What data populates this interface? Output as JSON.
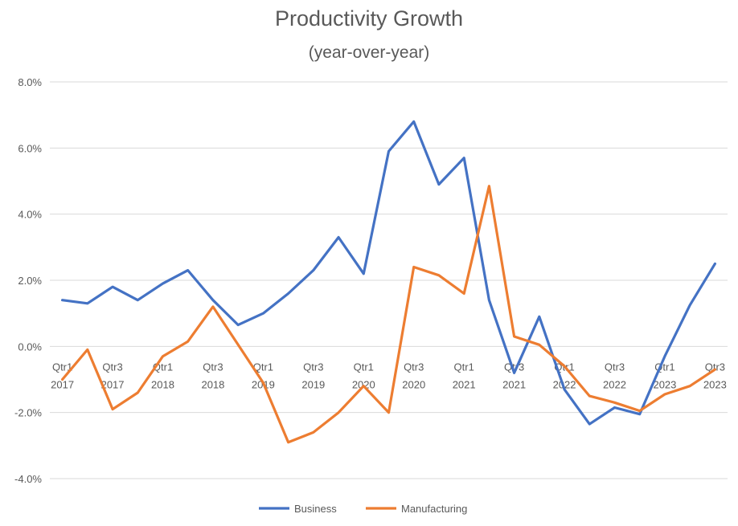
{
  "chart_data": {
    "type": "line",
    "title": "Productivity Growth",
    "subtitle": "(year-over-year)",
    "xlabel": "",
    "ylabel": "",
    "ylim": [
      -4,
      8
    ],
    "y_ticks": [
      "8.0%",
      "6.0%",
      "4.0%",
      "2.0%",
      "0.0%",
      "-2.0%",
      "-4.0%"
    ],
    "y_tick_values": [
      8,
      6,
      4,
      2,
      0,
      -2,
      -4
    ],
    "grid": true,
    "legend_position": "bottom",
    "categories": [
      "Qtr1 2017",
      "Qtr2 2017",
      "Qtr3 2017",
      "Qtr4 2017",
      "Qtr1 2018",
      "Qtr2 2018",
      "Qtr3 2018",
      "Qtr4 2018",
      "Qtr1 2019",
      "Qtr2 2019",
      "Qtr3 2019",
      "Qtr4 2019",
      "Qtr1 2020",
      "Qtr2 2020",
      "Qtr3 2020",
      "Qtr4 2020",
      "Qtr1 2021",
      "Qtr2 2021",
      "Qtr3 2021",
      "Qtr4 2021",
      "Qtr1 2022",
      "Qtr2 2022",
      "Qtr3 2022",
      "Qtr4 2022",
      "Qtr1 2023",
      "Qtr2 2023",
      "Qtr3 2023"
    ],
    "x_tick_labels": [
      {
        "q": "Qtr1",
        "y": "2017"
      },
      {
        "q": "Qtr3",
        "y": "2017"
      },
      {
        "q": "Qtr1",
        "y": "2018"
      },
      {
        "q": "Qtr3",
        "y": "2018"
      },
      {
        "q": "Qtr1",
        "y": "2019"
      },
      {
        "q": "Qtr3",
        "y": "2019"
      },
      {
        "q": "Qtr1",
        "y": "2020"
      },
      {
        "q": "Qtr3",
        "y": "2020"
      },
      {
        "q": "Qtr1",
        "y": "2021"
      },
      {
        "q": "Qtr3",
        "y": "2021"
      },
      {
        "q": "Qtr1",
        "y": "2022"
      },
      {
        "q": "Qtr3",
        "y": "2022"
      },
      {
        "q": "Qtr1",
        "y": "2023"
      },
      {
        "q": "Qtr3",
        "y": "2023"
      }
    ],
    "series": [
      {
        "name": "Business",
        "color": "#4472C4",
        "values": [
          1.4,
          1.3,
          1.8,
          1.4,
          1.9,
          2.3,
          1.4,
          0.65,
          1.0,
          1.6,
          2.3,
          3.3,
          2.2,
          5.9,
          6.8,
          4.9,
          5.7,
          1.4,
          -0.8,
          0.9,
          -1.3,
          -2.35,
          -1.85,
          -2.05,
          -0.3,
          1.25,
          2.5
        ]
      },
      {
        "name": "Manufacturing",
        "color": "#ED7D31",
        "values": [
          -1.0,
          -0.1,
          -1.9,
          -1.4,
          -0.3,
          0.15,
          1.2,
          0.05,
          -1.1,
          -2.9,
          -2.6,
          -2.0,
          -1.2,
          -2.0,
          2.4,
          2.15,
          1.6,
          4.85,
          0.3,
          0.05,
          -0.6,
          -1.5,
          -1.7,
          -1.95,
          -1.45,
          -1.2,
          -0.7
        ]
      }
    ]
  }
}
